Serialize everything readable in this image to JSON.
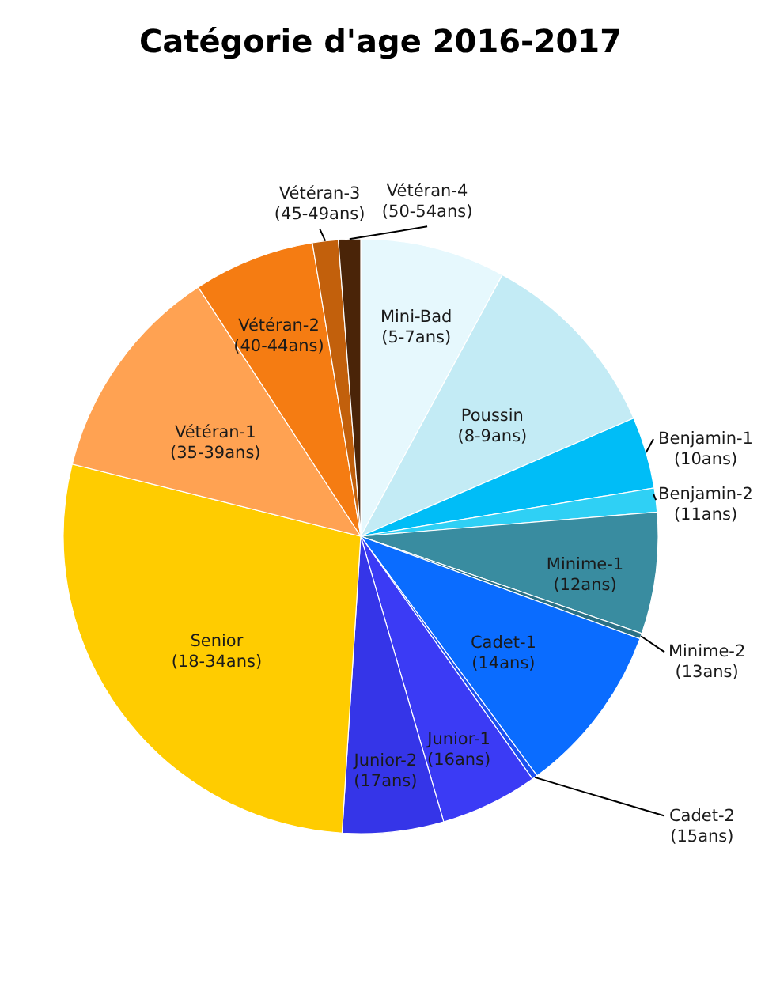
{
  "chart_data": {
    "type": "pie",
    "title": "Catégorie d'age 2016-2017",
    "categories": [
      "Mini-Bad (5-7ans)",
      "Poussin (8-9ans)",
      "Benjamin-1 (10ans)",
      "Benjamin-2 (11ans)",
      "Minime-1 (12ans)",
      "Minime-2 (13ans)",
      "Cadet-1 (14ans)",
      "Cadet-2 (15ans)",
      "Junior-1 (16ans)",
      "Junior-2 (17ans)",
      "Senior (18-34ans)",
      "Vétéran-1 (35-39ans)",
      "Vétéran-2 (40-44ans)",
      "Vétéran-3 (45-49ans)",
      "Vétéran-4 (50-54ans)"
    ],
    "values": [
      7.9,
      10.6,
      3.9,
      1.3,
      6.6,
      0.3,
      9.3,
      0.3,
      5.3,
      5.5,
      27.9,
      11.9,
      6.6,
      1.4,
      1.2
    ],
    "colors": [
      "#e6f8fd",
      "#c3ebf5",
      "#00bdf7",
      "#2fd0f5",
      "#398ca0",
      "#2a7085",
      "#0a6cff",
      "#1c50f0",
      "#3b3bf5",
      "#3535e8",
      "#ffcc00",
      "#ffa252",
      "#f57c12",
      "#c2600c",
      "#4a2408"
    ]
  }
}
